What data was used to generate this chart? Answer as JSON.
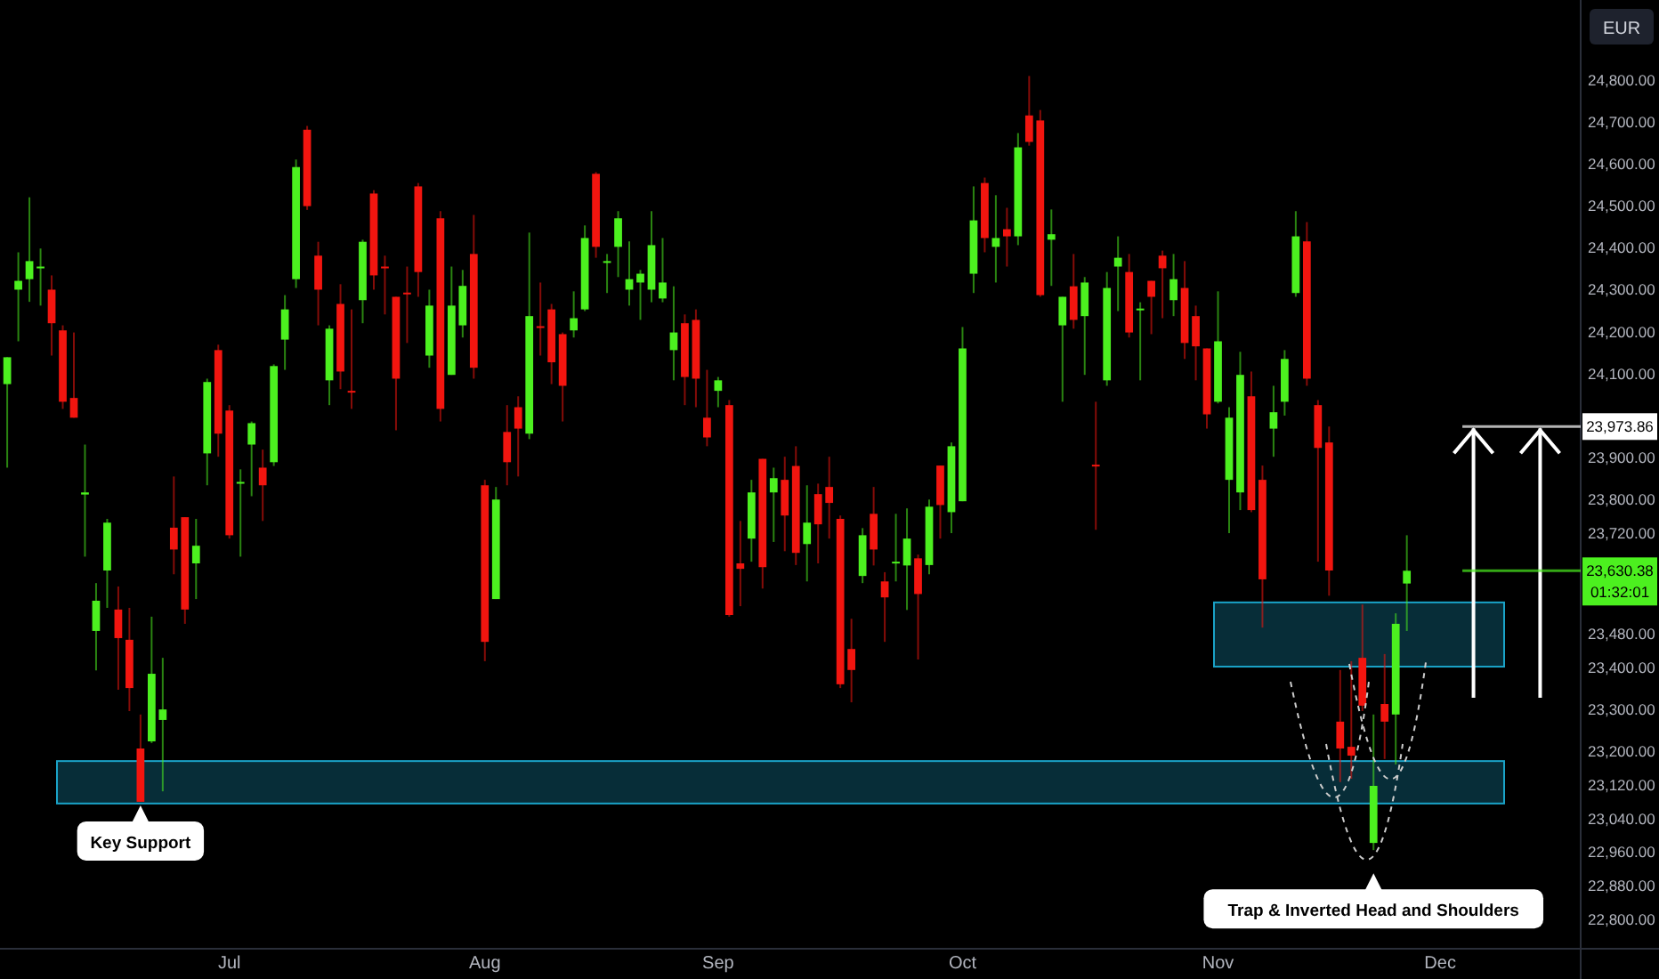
{
  "chart_data": {
    "type": "candlestick",
    "ylabel": "EUR",
    "categories": [
      null,
      null,
      null,
      null,
      null,
      null,
      null,
      null,
      null,
      null,
      null,
      null,
      null,
      null,
      null,
      null,
      null,
      null,
      null,
      null,
      "Jul",
      null,
      null,
      null,
      null,
      null,
      null,
      null,
      null,
      null,
      null,
      null,
      null,
      null,
      null,
      null,
      null,
      null,
      null,
      null,
      null,
      null,
      null,
      "Aug",
      null,
      null,
      null,
      null,
      null,
      null,
      null,
      null,
      null,
      null,
      null,
      null,
      null,
      null,
      null,
      null,
      null,
      null,
      null,
      null,
      "Sep",
      null,
      null,
      null,
      null,
      null,
      null,
      null,
      null,
      null,
      null,
      null,
      null,
      null,
      null,
      null,
      null,
      null,
      null,
      null,
      null,
      null,
      "Oct",
      null,
      null,
      null,
      null,
      null,
      null,
      null,
      null,
      null,
      null,
      null,
      null,
      null,
      null,
      null,
      null,
      null,
      null,
      null,
      null,
      null,
      null,
      "Nov",
      null,
      null,
      null,
      null,
      null,
      null,
      null,
      null,
      null,
      null,
      null,
      null,
      null,
      null,
      null,
      null,
      null,
      null,
      null,
      "Dec",
      null,
      null,
      null,
      null,
      null,
      null,
      null,
      null,
      null,
      null,
      null,
      null
    ],
    "ohlc": [
      [
        24075,
        24139,
        23876,
        24139
      ],
      [
        24300,
        24389,
        24177,
        24321
      ],
      [
        24325,
        24520,
        24271,
        24368
      ],
      [
        24351,
        24398,
        24262,
        24355
      ],
      [
        24300,
        24334,
        24143,
        24220
      ],
      [
        24203,
        24215,
        24016,
        24033
      ],
      [
        24042,
        24198,
        23995,
        23995
      ],
      [
        23812,
        23931,
        23664,
        23817
      ],
      [
        23487,
        23601,
        23393,
        23559
      ],
      [
        23631,
        23754,
        23542,
        23745
      ],
      [
        23538,
        23593,
        23347,
        23470
      ],
      [
        23466,
        23542,
        23296,
        23351
      ],
      [
        23207,
        23288,
        23080,
        23080
      ],
      [
        23224,
        23521,
        23220,
        23385
      ],
      [
        23275,
        23423,
        23105,
        23300
      ],
      [
        23733,
        23855,
        23622,
        23681
      ],
      [
        23758,
        23758,
        23504,
        23538
      ],
      [
        23648,
        23754,
        23563,
        23690
      ],
      [
        23910,
        24088,
        23834,
        24080
      ],
      [
        24156,
        24169,
        23902,
        23957
      ],
      [
        24012,
        24025,
        23707,
        23715
      ],
      [
        23838,
        23872,
        23664,
        23842
      ],
      [
        23931,
        23986,
        23808,
        23982
      ],
      [
        23876,
        23919,
        23749,
        23834
      ],
      [
        23889,
        24122,
        23880,
        24118
      ],
      [
        24181,
        24287,
        24109,
        24253
      ],
      [
        24325,
        24610,
        24304,
        24592
      ],
      [
        24681,
        24690,
        24490,
        24499
      ],
      [
        24381,
        24414,
        24215,
        24300
      ],
      [
        24084,
        24215,
        24025,
        24207
      ],
      [
        24266,
        24313,
        24063,
        24105
      ],
      [
        24059,
        24253,
        24016,
        24055
      ],
      [
        24275,
        24419,
        24220,
        24414
      ],
      [
        24529,
        24537,
        24300,
        24334
      ],
      [
        24355,
        24381,
        24241,
        24351
      ],
      [
        24283,
        24283,
        23965,
        24088
      ],
      [
        24293,
        24355,
        24173,
        24289
      ],
      [
        24546,
        24554,
        24283,
        24342
      ],
      [
        24143,
        24300,
        24114,
        24262
      ],
      [
        24470,
        24487,
        23986,
        24016
      ],
      [
        24097,
        24355,
        24097,
        24262
      ],
      [
        24215,
        24347,
        24186,
        24309
      ],
      [
        24385,
        24478,
        24088,
        24114
      ],
      [
        23834,
        23847,
        23415,
        23461
      ],
      [
        23563,
        23830,
        23563,
        23800
      ],
      [
        23961,
        24025,
        23834,
        23889
      ],
      [
        24020,
        24046,
        23855,
        23969
      ],
      [
        23957,
        24436,
        23944,
        24237
      ],
      [
        24213,
        24317,
        24143,
        24209
      ],
      [
        24253,
        24266,
        24075,
        24127
      ],
      [
        24194,
        24198,
        23986,
        24071
      ],
      [
        24203,
        24296,
        24186,
        24232
      ],
      [
        24253,
        24453,
        24249,
        24423
      ],
      [
        24576,
        24580,
        24376,
        24402
      ],
      [
        24364,
        24385,
        24292,
        24368
      ],
      [
        24402,
        24487,
        24330,
        24470
      ],
      [
        24300,
        24415,
        24262,
        24325
      ],
      [
        24317,
        24347,
        24228,
        24338
      ],
      [
        24300,
        24487,
        24270,
        24406
      ],
      [
        24279,
        24423,
        24270,
        24317
      ],
      [
        24156,
        24308,
        24084,
        24198
      ],
      [
        24220,
        24241,
        24025,
        24092
      ],
      [
        24228,
        24253,
        24020,
        24088
      ],
      [
        23995,
        24109,
        23927,
        23948
      ],
      [
        24059,
        24092,
        24020,
        24084
      ],
      [
        24025,
        24037,
        23521,
        23525
      ],
      [
        23648,
        23749,
        23546,
        23635
      ],
      [
        23707,
        23847,
        23652,
        23817
      ],
      [
        23897,
        23897,
        23588,
        23639
      ],
      [
        23817,
        23876,
        23699,
        23851
      ],
      [
        23847,
        23902,
        23677,
        23762
      ],
      [
        23880,
        23927,
        23644,
        23673
      ],
      [
        23694,
        23834,
        23605,
        23745
      ],
      [
        23813,
        23838,
        23648,
        23741
      ],
      [
        23830,
        23902,
        23707,
        23792
      ],
      [
        23754,
        23762,
        23351,
        23360
      ],
      [
        23444,
        23516,
        23317,
        23394
      ],
      [
        23618,
        23732,
        23601,
        23715
      ],
      [
        23766,
        23830,
        23643,
        23681
      ],
      [
        23605,
        23627,
        23461,
        23567
      ],
      [
        23648,
        23766,
        23605,
        23652
      ],
      [
        23643,
        23779,
        23537,
        23707
      ],
      [
        23660,
        23669,
        23419,
        23575
      ],
      [
        23644,
        23800,
        23622,
        23783
      ],
      [
        23881,
        23881,
        23707,
        23787
      ],
      [
        23770,
        23936,
        23720,
        23927
      ],
      [
        23796,
        24211,
        23796,
        24160
      ],
      [
        24338,
        24546,
        24292,
        24465
      ],
      [
        24554,
        24567,
        24389,
        24423
      ],
      [
        24402,
        24525,
        24317,
        24423
      ],
      [
        24444,
        24495,
        24355,
        24427
      ],
      [
        24427,
        24673,
        24406,
        24639
      ],
      [
        24715,
        24809,
        24643,
        24652
      ],
      [
        24703,
        24728,
        24283,
        24287
      ],
      [
        24419,
        24491,
        24309,
        24432
      ],
      [
        24215,
        24283,
        24033,
        24283
      ],
      [
        24308,
        24385,
        24207,
        24228
      ],
      [
        24237,
        24330,
        24097,
        24317
      ],
      [
        23883,
        24033,
        23728,
        23881
      ],
      [
        24084,
        24342,
        24071,
        24304
      ],
      [
        24355,
        24427,
        24249,
        24376
      ],
      [
        24342,
        24385,
        24186,
        24198
      ],
      [
        24251,
        24270,
        24084,
        24255
      ],
      [
        24321,
        24321,
        24194,
        24283
      ],
      [
        24381,
        24393,
        24232,
        24351
      ],
      [
        24275,
        24385,
        24237,
        24325
      ],
      [
        24304,
        24368,
        24135,
        24173
      ],
      [
        24237,
        24262,
        24084,
        24165
      ],
      [
        24160,
        24160,
        23969,
        24003
      ],
      [
        24033,
        24296,
        24029,
        24177
      ],
      [
        23847,
        24020,
        23720,
        23995
      ],
      [
        23817,
        24152,
        23775,
        24097
      ],
      [
        24046,
        24105,
        23770,
        23775
      ],
      [
        23847,
        23881,
        23495,
        23610
      ],
      [
        23969,
        24071,
        23902,
        24008
      ],
      [
        24033,
        24156,
        24000,
        24135
      ],
      [
        24292,
        24487,
        24283,
        24427
      ],
      [
        24415,
        24461,
        24071,
        24088
      ],
      [
        24025,
        24037,
        23652,
        23923
      ],
      [
        23936,
        23974,
        23571,
        23631
      ],
      [
        23271,
        23394,
        23127,
        23207
      ],
      [
        23211,
        23415,
        23135,
        23190
      ],
      [
        23423,
        23550,
        23296,
        23309
      ],
      [
        22982,
        23288,
        22965,
        23118
      ],
      [
        23313,
        23432,
        23182,
        23271
      ],
      [
        23288,
        23529,
        23169,
        23504
      ],
      [
        23600,
        23715,
        23487,
        23630.38
      ],
      null,
      null,
      null,
      null,
      null,
      null,
      null,
      null,
      null,
      null,
      null,
      null,
      null,
      null,
      null
    ],
    "colors": [
      "#4cf01f",
      "#4cf01f",
      "#4cf01f",
      "#4cf01f",
      "#f2150f",
      "#f2150f",
      "#f2150f",
      "#4cf01f",
      "#4cf01f",
      "#4cf01f",
      "#f2150f",
      "#f2150f",
      "#f2150f",
      "#4cf01f",
      "#4cf01f",
      "#f2150f",
      "#f2150f",
      "#4cf01f",
      "#4cf01f",
      "#f2150f",
      "#f2150f",
      "#4cf01f",
      "#4cf01f",
      "#f2150f",
      "#4cf01f",
      "#4cf01f",
      "#4cf01f",
      "#f2150f",
      "#f2150f",
      "#4cf01f",
      "#f2150f",
      "#f2150f",
      "#4cf01f",
      "#f2150f",
      "#f2150f",
      "#f2150f",
      "#f2150f",
      "#f2150f",
      "#4cf01f",
      "#f2150f",
      "#4cf01f",
      "#4cf01f",
      "#f2150f",
      "#f2150f",
      "#4cf01f",
      "#f2150f",
      "#f2150f",
      "#4cf01f",
      "#f2150f",
      "#f2150f",
      "#f2150f",
      "#4cf01f",
      "#4cf01f",
      "#f2150f",
      "#4cf01f",
      "#4cf01f",
      "#4cf01f",
      "#4cf01f",
      "#4cf01f",
      "#4cf01f",
      "#4cf01f",
      "#f2150f",
      "#f2150f",
      "#f2150f",
      "#4cf01f",
      "#f2150f",
      "#f2150f",
      "#4cf01f",
      "#f2150f",
      "#4cf01f",
      "#f2150f",
      "#f2150f",
      "#4cf01f",
      "#f2150f",
      "#f2150f",
      "#f2150f",
      "#f2150f",
      "#4cf01f",
      "#f2150f",
      "#f2150f",
      "#4cf01f",
      "#4cf01f",
      "#f2150f",
      "#4cf01f",
      "#f2150f",
      "#4cf01f",
      "#4cf01f",
      "#4cf01f",
      "#f2150f",
      "#4cf01f",
      "#f2150f",
      "#4cf01f",
      "#f2150f",
      "#f2150f",
      "#4cf01f",
      "#4cf01f",
      "#f2150f",
      "#4cf01f",
      "#f2150f",
      "#4cf01f",
      "#4cf01f",
      "#f2150f",
      "#4cf01f",
      "#f2150f",
      "#f2150f",
      "#4cf01f",
      "#f2150f",
      "#f2150f",
      "#f2150f",
      "#4cf01f",
      "#4cf01f",
      "#4cf01f",
      "#f2150f",
      "#f2150f",
      "#4cf01f",
      "#4cf01f",
      "#4cf01f",
      "#f2150f",
      "#f2150f",
      "#f2150f",
      "#f2150f",
      "#f2150f",
      "#f2150f",
      "#4cf01f",
      "#f2150f",
      "#4cf01f",
      "#4cf01f",
      null,
      null,
      null,
      null,
      null,
      null,
      null,
      null,
      null,
      null,
      null,
      null,
      null,
      null,
      null
    ],
    "ylim": [
      22730,
      24990
    ],
    "yticks": [
      {
        "value": 24800,
        "label": "24,800.00"
      },
      {
        "value": 24700,
        "label": "24,700.00"
      },
      {
        "value": 24600,
        "label": "24,600.00"
      },
      {
        "value": 24500,
        "label": "24,500.00"
      },
      {
        "value": 24400,
        "label": "24,400.00"
      },
      {
        "value": 24300,
        "label": "24,300.00"
      },
      {
        "value": 24200,
        "label": "24,200.00"
      },
      {
        "value": 24100,
        "label": "24,100.00"
      },
      {
        "value": 23900,
        "label": "23,900.00"
      },
      {
        "value": 23800,
        "label": "23,800.00"
      },
      {
        "value": 23720,
        "label": "23,720.00"
      },
      {
        "value": 23480,
        "label": "23,480.00"
      },
      {
        "value": 23400,
        "label": "23,400.00"
      },
      {
        "value": 23300,
        "label": "23,300.00"
      },
      {
        "value": 23200,
        "label": "23,200.00"
      },
      {
        "value": 23120,
        "label": "23,120.00"
      },
      {
        "value": 23040,
        "label": "23,040.00"
      },
      {
        "value": 22960,
        "label": "22,960.00"
      },
      {
        "value": 22880,
        "label": "22,880.00"
      },
      {
        "value": 22800,
        "label": "22,800.00"
      }
    ],
    "bands": [
      {
        "axis": "y",
        "from": 23402,
        "to": 23555,
        "color": "#1aa3c8"
      },
      {
        "axis": "y",
        "from": 23076,
        "to": 23177,
        "color": "#1aa3c8"
      }
    ],
    "ref_lines": [
      {
        "axis": "y",
        "value": 23973.86,
        "label": "23,973.86",
        "color": "#ffffff"
      },
      {
        "axis": "y",
        "value": 23630.38,
        "label": "23,630.38\n01:32:01",
        "color": "#4cf01f"
      }
    ],
    "annotations": [
      "Key Support",
      "Trap & Inverted Head and Shoulders"
    ]
  }
}
